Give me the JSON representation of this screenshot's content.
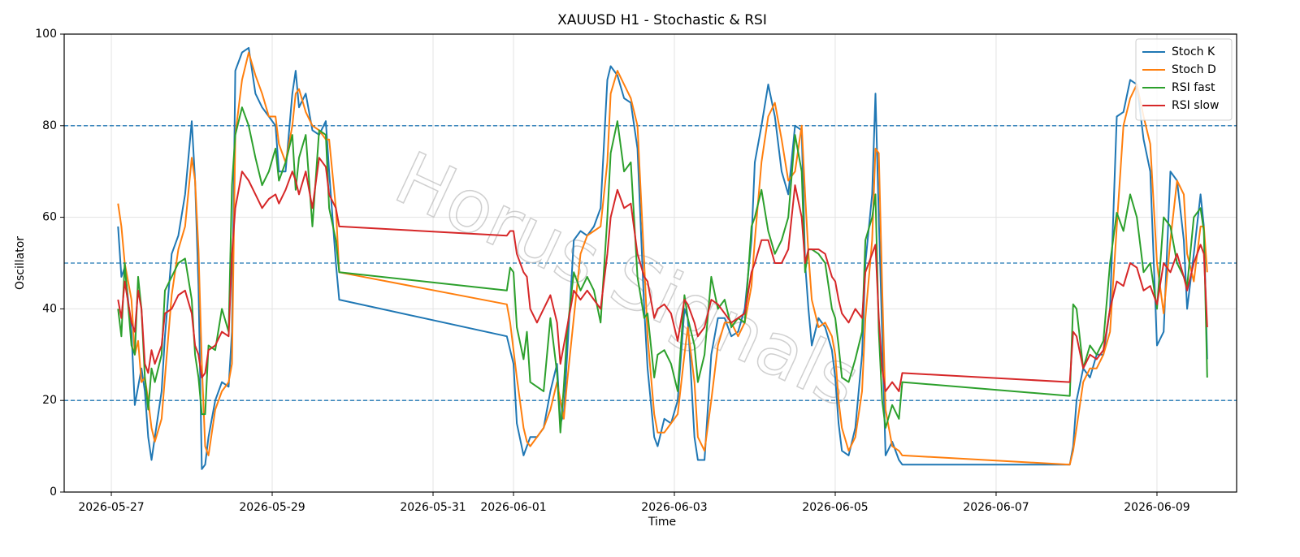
{
  "chart_data": {
    "type": "line",
    "title": "XAUUSD H1 - Stochastic & RSI",
    "x_label": "Time",
    "y_label": "Oscillator",
    "watermark": "Horus Signals",
    "x": [
      "2026-05-27 02:00",
      "2026-05-27 03:00",
      "2026-05-27 04:00",
      "2026-05-27 06:00",
      "2026-05-27 07:00",
      "2026-05-27 08:00",
      "2026-05-27 09:00",
      "2026-05-27 10:00",
      "2026-05-27 11:00",
      "2026-05-27 12:00",
      "2026-05-27 13:00",
      "2026-05-27 15:00",
      "2026-05-27 16:00",
      "2026-05-27 18:00",
      "2026-05-27 20:00",
      "2026-05-27 22:00",
      "2026-05-28 00:00",
      "2026-05-28 01:00",
      "2026-05-28 02:00",
      "2026-05-28 03:00",
      "2026-05-28 04:00",
      "2026-05-28 05:00",
      "2026-05-28 07:00",
      "2026-05-28 09:00",
      "2026-05-28 11:00",
      "2026-05-28 12:00",
      "2026-05-28 13:00",
      "2026-05-28 15:00",
      "2026-05-28 17:00",
      "2026-05-28 19:00",
      "2026-05-28 21:00",
      "2026-05-28 23:00",
      "2026-05-29 01:00",
      "2026-05-29 02:00",
      "2026-05-29 04:00",
      "2026-05-29 06:00",
      "2026-05-29 07:00",
      "2026-05-29 08:00",
      "2026-05-29 10:00",
      "2026-05-29 12:00",
      "2026-05-29 14:00",
      "2026-05-29 16:00",
      "2026-05-29 17:00",
      "2026-05-29 19:00",
      "2026-05-29 20:00",
      "2026-05-31 22:00",
      "2026-05-31 23:00",
      "2026-06-01 00:00",
      "2026-06-01 01:00",
      "2026-06-01 03:00",
      "2026-06-01 04:00",
      "2026-06-01 05:00",
      "2026-06-01 07:00",
      "2026-06-01 09:00",
      "2026-06-01 11:00",
      "2026-06-01 13:00",
      "2026-06-01 14:00",
      "2026-06-01 15:00",
      "2026-06-01 16:00",
      "2026-06-01 18:00",
      "2026-06-01 20:00",
      "2026-06-01 22:00",
      "2026-06-02 00:00",
      "2026-06-02 02:00",
      "2026-06-02 04:00",
      "2026-06-02 05:00",
      "2026-06-02 07:00",
      "2026-06-02 09:00",
      "2026-06-02 11:00",
      "2026-06-02 13:00",
      "2026-06-02 15:00",
      "2026-06-02 16:00",
      "2026-06-02 18:00",
      "2026-06-02 19:00",
      "2026-06-02 21:00",
      "2026-06-02 23:00",
      "2026-06-03 01:00",
      "2026-06-03 03:00",
      "2026-06-03 04:00",
      "2026-06-03 06:00",
      "2026-06-03 07:00",
      "2026-06-03 09:00",
      "2026-06-03 11:00",
      "2026-06-03 13:00",
      "2026-06-03 15:00",
      "2026-06-03 17:00",
      "2026-06-03 19:00",
      "2026-06-03 21:00",
      "2026-06-03 23:00",
      "2026-06-04 00:00",
      "2026-06-04 02:00",
      "2026-06-04 04:00",
      "2026-06-04 06:00",
      "2026-06-04 08:00",
      "2026-06-04 10:00",
      "2026-06-04 12:00",
      "2026-06-04 14:00",
      "2026-06-04 15:00",
      "2026-06-04 16:00",
      "2026-06-04 17:00",
      "2026-06-04 19:00",
      "2026-06-04 21:00",
      "2026-06-04 23:00",
      "2026-06-05 00:00",
      "2026-06-05 01:00",
      "2026-06-05 02:00",
      "2026-06-05 04:00",
      "2026-06-05 06:00",
      "2026-06-05 08:00",
      "2026-06-05 09:00",
      "2026-06-05 11:00",
      "2026-06-05 12:00",
      "2026-06-05 13:00",
      "2026-06-05 14:00",
      "2026-06-05 15:00",
      "2026-06-05 17:00",
      "2026-06-05 19:00",
      "2026-06-05 20:00",
      "2026-06-07 22:00",
      "2026-06-07 23:00",
      "2026-06-08 00:00",
      "2026-06-08 02:00",
      "2026-06-08 04:00",
      "2026-06-08 06:00",
      "2026-06-08 08:00",
      "2026-06-08 10:00",
      "2026-06-08 12:00",
      "2026-06-08 14:00",
      "2026-06-08 16:00",
      "2026-06-08 18:00",
      "2026-06-08 20:00",
      "2026-06-08 22:00",
      "2026-06-09 00:00",
      "2026-06-09 02:00",
      "2026-06-09 04:00",
      "2026-06-09 06:00",
      "2026-06-09 08:00",
      "2026-06-09 09:00",
      "2026-06-09 11:00",
      "2026-06-09 13:00",
      "2026-06-09 14:00",
      "2026-06-09 15:00"
    ],
    "series": [
      {
        "name": "Stoch K",
        "color": "#1f77b4",
        "values": [
          58,
          47,
          49,
          35,
          19,
          23,
          27,
          22,
          12,
          7,
          12,
          22,
          34,
          52,
          56,
          65,
          81,
          68,
          45,
          5,
          6,
          12,
          20,
          24,
          23,
          35,
          92,
          96,
          97,
          87,
          84,
          82,
          80,
          70,
          70,
          87,
          92,
          84,
          87,
          79,
          78,
          81,
          70,
          50,
          42,
          34,
          31,
          28,
          15,
          8,
          10,
          12,
          12,
          14,
          22,
          28,
          15,
          17,
          30,
          55,
          57,
          56,
          58,
          62,
          90,
          93,
          91,
          86,
          85,
          75,
          40,
          27,
          12,
          10,
          16,
          15,
          20,
          40,
          38,
          12,
          7,
          7,
          30,
          38,
          38,
          34,
          35,
          40,
          55,
          72,
          80,
          89,
          82,
          70,
          65,
          80,
          79,
          50,
          40,
          32,
          38,
          36,
          31,
          25,
          15,
          9,
          8,
          14,
          30,
          50,
          65,
          87,
          60,
          35,
          8,
          11,
          7,
          6,
          6,
          10,
          20,
          27,
          25,
          30,
          30,
          40,
          82,
          83,
          90,
          89,
          77,
          70,
          32,
          35,
          70,
          68,
          55,
          40,
          52,
          65,
          58,
          29
        ]
      },
      {
        "name": "Stoch D",
        "color": "#ff7f0e",
        "values": [
          63,
          58,
          50,
          42,
          30,
          33,
          24,
          25,
          20,
          14,
          11,
          16,
          25,
          43,
          53,
          58,
          73,
          68,
          53,
          28,
          10,
          8,
          18,
          22,
          24,
          28,
          78,
          90,
          96,
          91,
          87,
          82,
          82,
          76,
          72,
          80,
          87,
          88,
          83,
          80,
          79,
          77,
          77,
          62,
          48,
          41,
          37,
          31,
          25,
          14,
          11,
          10,
          12,
          14,
          18,
          24,
          20,
          16,
          24,
          38,
          52,
          56,
          57,
          58,
          72,
          87,
          92,
          89,
          86,
          80,
          50,
          34,
          17,
          13,
          13,
          15,
          17,
          30,
          36,
          24,
          12,
          9,
          20,
          32,
          37,
          37,
          34,
          37,
          45,
          55,
          72,
          82,
          85,
          77,
          68,
          70,
          80,
          65,
          52,
          42,
          36,
          37,
          34,
          30,
          20,
          14,
          9,
          12,
          22,
          38,
          55,
          75,
          74,
          45,
          18,
          10,
          9,
          8,
          6,
          9,
          14,
          24,
          27,
          27,
          30,
          35,
          58,
          80,
          86,
          89,
          82,
          76,
          50,
          39,
          55,
          68,
          65,
          52,
          46,
          58,
          58,
          48
        ]
      },
      {
        "name": "RSI fast",
        "color": "#2ca02c",
        "values": [
          40,
          34,
          50,
          32,
          30,
          47,
          40,
          25,
          18,
          27,
          24,
          30,
          44,
          47,
          50,
          51,
          42,
          30,
          25,
          17,
          17,
          32,
          31,
          40,
          35,
          67,
          78,
          84,
          80,
          73,
          67,
          70,
          75,
          68,
          72,
          78,
          66,
          73,
          78,
          58,
          79,
          78,
          62,
          55,
          48,
          44,
          49,
          48,
          36,
          29,
          35,
          24,
          23,
          22,
          38,
          26,
          13,
          23,
          35,
          48,
          44,
          47,
          44,
          37,
          60,
          74,
          81,
          70,
          72,
          47,
          38,
          39,
          25,
          30,
          31,
          28,
          22,
          43,
          38,
          32,
          24,
          30,
          47,
          40,
          42,
          36,
          38,
          37,
          58,
          60,
          66,
          57,
          52,
          55,
          60,
          78,
          70,
          48,
          53,
          53,
          52,
          50,
          40,
          38,
          32,
          25,
          24,
          29,
          35,
          55,
          60,
          65,
          35,
          20,
          14,
          19,
          16,
          24,
          21,
          41,
          40,
          27,
          32,
          30,
          33,
          50,
          61,
          57,
          65,
          60,
          48,
          50,
          40,
          60,
          58,
          50,
          47,
          45,
          60,
          62,
          57,
          25
        ]
      },
      {
        "name": "RSI slow",
        "color": "#d62728",
        "values": [
          42,
          38,
          46,
          37,
          35,
          44,
          40,
          28,
          26,
          31,
          28,
          32,
          39,
          40,
          43,
          44,
          39,
          32,
          30,
          25,
          26,
          31,
          32,
          35,
          34,
          52,
          62,
          70,
          68,
          65,
          62,
          64,
          65,
          63,
          66,
          70,
          68,
          65,
          70,
          62,
          73,
          71,
          65,
          62,
          58,
          56,
          57,
          57,
          52,
          48,
          47,
          40,
          37,
          40,
          43,
          37,
          28,
          32,
          36,
          44,
          42,
          44,
          42,
          40,
          52,
          60,
          66,
          62,
          63,
          52,
          47,
          46,
          38,
          40,
          41,
          39,
          33,
          42,
          41,
          37,
          34,
          36,
          42,
          41,
          39,
          37,
          38,
          39,
          48,
          50,
          55,
          55,
          50,
          50,
          53,
          67,
          60,
          50,
          53,
          53,
          53,
          52,
          47,
          46,
          42,
          39,
          37,
          40,
          38,
          48,
          52,
          54,
          38,
          27,
          22,
          24,
          22,
          26,
          24,
          35,
          34,
          27,
          30,
          29,
          31,
          40,
          46,
          45,
          50,
          49,
          44,
          45,
          41,
          50,
          48,
          52,
          47,
          44,
          50,
          54,
          52,
          36
        ]
      }
    ],
    "xlim": [
      "2026-05-26 09:56",
      "2026-06-09 23:46"
    ],
    "xticks": [
      "2026-05-27",
      "2026-05-29",
      "2026-05-31",
      "2026-06-01",
      "2026-06-03",
      "2026-06-05",
      "2026-06-07",
      "2026-06-09"
    ],
    "ylim": [
      0,
      100
    ],
    "yticks": [
      0,
      20,
      40,
      60,
      80,
      100
    ],
    "hlines": [
      20,
      50,
      80
    ],
    "hline_color": "#1f77b4",
    "grid": true,
    "legend": "upper right"
  }
}
